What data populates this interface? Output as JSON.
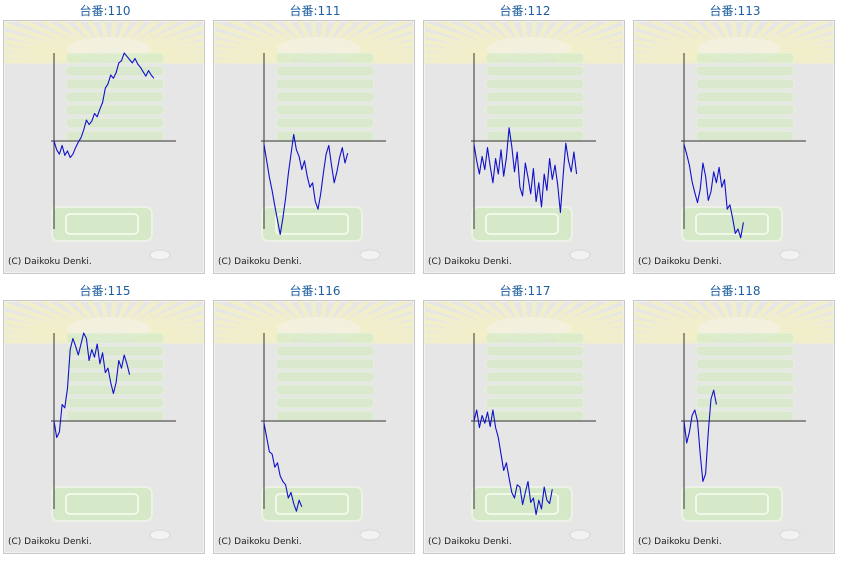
{
  "colors": {
    "title": "#1f5fa0",
    "line": "#1010cc",
    "panel_bg": "#e6e6e6",
    "axis": "#333333"
  },
  "credit_text": "(C) Daikoku Denki.",
  "chart_data": [
    {
      "type": "line",
      "title": "台番:110",
      "series": [
        {
          "values": [
            0,
            -8,
            -12,
            -4,
            -13,
            -9,
            -15,
            -12,
            -6,
            -1,
            3,
            10,
            19,
            15,
            18,
            25,
            22,
            29,
            35,
            48,
            52,
            60,
            57,
            62,
            71,
            73,
            80,
            77,
            74,
            71,
            75,
            70,
            67,
            63,
            59,
            64,
            60,
            57
          ]
        }
      ]
    },
    {
      "type": "line",
      "title": "台番:111",
      "series": [
        {
          "values": [
            -3,
            -18,
            -33,
            -45,
            -59,
            -72,
            -85,
            -70,
            -52,
            -30,
            -12,
            6,
            -8,
            -14,
            -26,
            -18,
            -32,
            -42,
            -38,
            -55,
            -62,
            -48,
            -29,
            -12,
            -4,
            -22,
            -38,
            -28,
            -15,
            -6,
            -20,
            -11
          ]
        }
      ]
    },
    {
      "type": "line",
      "title": "台番:112",
      "series": [
        {
          "values": [
            -3,
            -18,
            -30,
            -14,
            -26,
            -6,
            -23,
            -38,
            -16,
            -30,
            -8,
            -32,
            -15,
            12,
            -5,
            -28,
            -10,
            -42,
            -50,
            -20,
            -33,
            -48,
            -25,
            -55,
            -38,
            -60,
            -30,
            -45,
            -16,
            -35,
            -22,
            -40,
            -65,
            -32,
            -2,
            -18,
            -28,
            -10,
            -30
          ]
        }
      ]
    },
    {
      "type": "line",
      "title": "台番:113",
      "series": [
        {
          "values": [
            -3,
            -12,
            -22,
            -37,
            -47,
            -56,
            -44,
            -20,
            -32,
            -54,
            -46,
            -28,
            -38,
            -24,
            -42,
            -35,
            -62,
            -58,
            -70,
            -84,
            -80,
            -88,
            -74
          ]
        }
      ]
    },
    {
      "type": "line",
      "title": "台番:115",
      "series": [
        {
          "values": [
            0,
            -15,
            -10,
            15,
            12,
            30,
            65,
            75,
            68,
            60,
            70,
            80,
            75,
            55,
            65,
            58,
            70,
            52,
            62,
            44,
            48,
            35,
            25,
            35,
            55,
            48,
            60,
            52,
            42
          ]
        }
      ]
    },
    {
      "type": "line",
      "title": "台番:116",
      "series": [
        {
          "values": [
            -2,
            -15,
            -28,
            -30,
            -42,
            -38,
            -50,
            -55,
            -58,
            -70,
            -65,
            -75,
            -82,
            -72,
            -78
          ]
        }
      ]
    },
    {
      "type": "line",
      "title": "台番:117",
      "series": [
        {
          "values": [
            0,
            10,
            -6,
            5,
            -2,
            8,
            -5,
            10,
            -6,
            -15,
            -30,
            -45,
            -38,
            -52,
            -65,
            -70,
            -58,
            -60,
            -76,
            -65,
            -55,
            -74,
            -70,
            -85,
            -72,
            -80,
            -60,
            -72,
            -75,
            -62
          ]
        }
      ]
    },
    {
      "type": "line",
      "title": "台番:118",
      "series": [
        {
          "values": [
            0,
            -20,
            -10,
            5,
            10,
            0,
            -30,
            -55,
            -48,
            -10,
            20,
            28,
            15
          ]
        }
      ]
    }
  ]
}
